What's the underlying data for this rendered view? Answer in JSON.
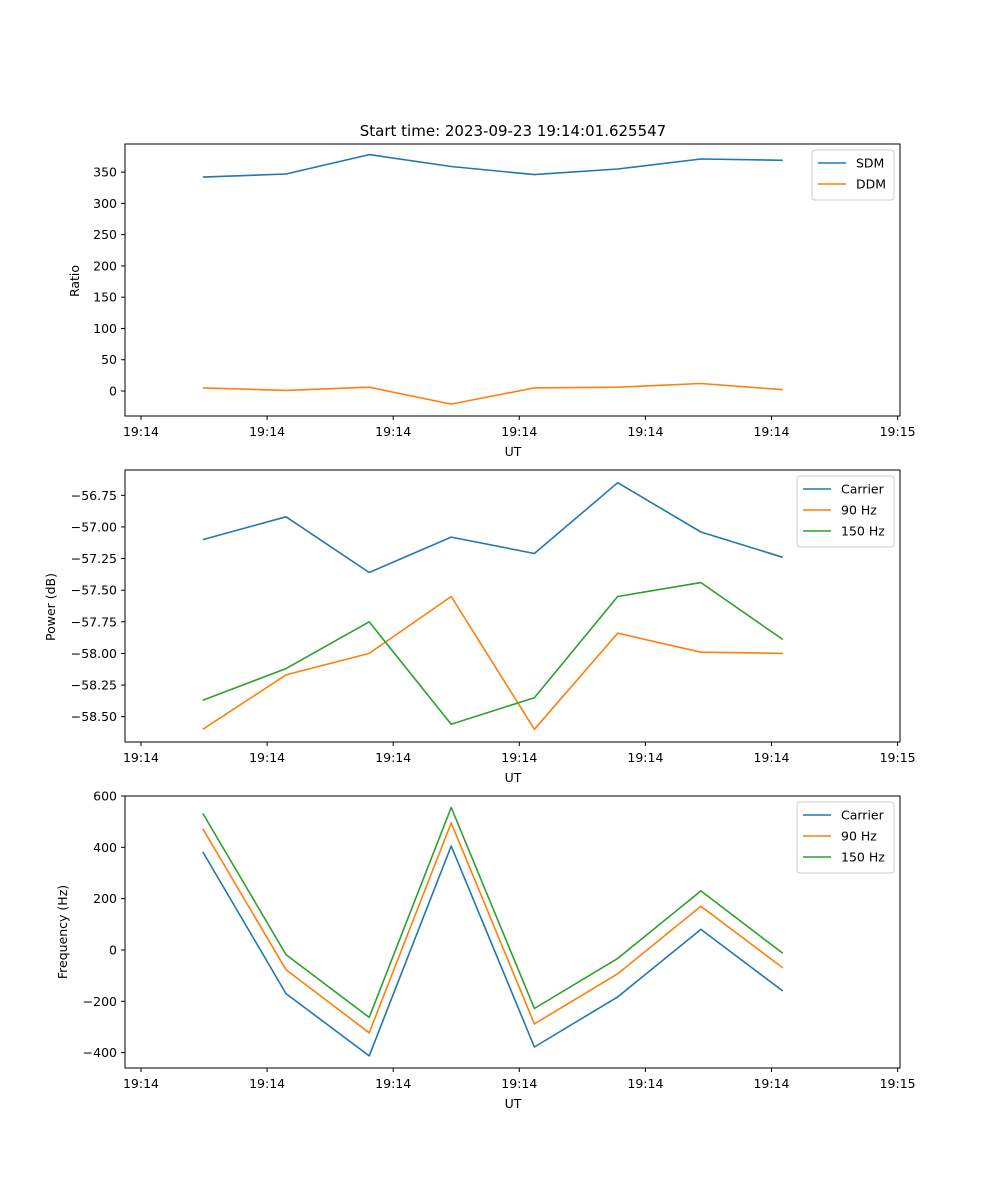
{
  "chart_data": [
    {
      "type": "line",
      "title": "Start time: 2023-09-23 19:14:01.625547",
      "xlabel": "UT",
      "ylabel": "Ratio",
      "x_tick_labels": [
        "19:14",
        "19:14",
        "19:14",
        "19:14",
        "19:14",
        "19:14",
        "19:15"
      ],
      "x_tick_index": [
        0,
        1,
        2,
        3,
        4,
        5,
        6
      ],
      "xlim": [
        -0.14,
        6.0
      ],
      "ylim": [
        -40,
        395
      ],
      "yticks": [
        0,
        50,
        100,
        150,
        200,
        250,
        300,
        350
      ],
      "x": [
        0.49,
        1.15,
        1.81,
        2.46,
        3.12,
        3.78,
        4.44,
        5.09
      ],
      "legend": "top-right",
      "series": [
        {
          "name": "SDM",
          "color": "#1f77b4",
          "values": [
            342,
            347,
            378,
            359,
            346,
            355,
            371,
            369
          ]
        },
        {
          "name": "DDM",
          "color": "#ff7f0e",
          "values": [
            5,
            1,
            6,
            -21,
            5,
            6,
            12,
            2
          ]
        }
      ]
    },
    {
      "type": "line",
      "title": "",
      "xlabel": "UT",
      "ylabel": "Power (dB)",
      "x_tick_labels": [
        "19:14",
        "19:14",
        "19:14",
        "19:14",
        "19:14",
        "19:14",
        "19:15"
      ],
      "x_tick_index": [
        0,
        1,
        2,
        3,
        4,
        5,
        6
      ],
      "xlim": [
        -0.14,
        6.0
      ],
      "ylim": [
        -58.7,
        -56.55
      ],
      "yticks": [
        -58.5,
        -58.25,
        -58.0,
        -57.75,
        -57.5,
        -57.25,
        -57.0,
        -56.75
      ],
      "ytick_labels": [
        "−58.50",
        "−58.25",
        "−58.00",
        "−57.75",
        "−57.50",
        "−57.25",
        "−57.00",
        "−56.75"
      ],
      "x": [
        0.49,
        1.15,
        1.81,
        2.46,
        3.12,
        3.78,
        4.44,
        5.09
      ],
      "legend": "top-right",
      "series": [
        {
          "name": "Carrier",
          "color": "#1f77b4",
          "values": [
            -57.1,
            -56.92,
            -57.36,
            -57.08,
            -57.21,
            -56.65,
            -57.04,
            -57.24
          ]
        },
        {
          "name": "90 Hz",
          "color": "#ff7f0e",
          "values": [
            -58.6,
            -58.17,
            -58.0,
            -57.55,
            -58.6,
            -57.84,
            -57.99,
            -58.0
          ]
        },
        {
          "name": "150 Hz",
          "color": "#2ca02c",
          "values": [
            -58.37,
            -58.12,
            -57.75,
            -58.56,
            -58.35,
            -57.55,
            -57.44,
            -57.89
          ]
        }
      ]
    },
    {
      "type": "line",
      "title": "",
      "xlabel": "UT",
      "ylabel": "Frequency (Hz)",
      "x_tick_labels": [
        "19:14",
        "19:14",
        "19:14",
        "19:14",
        "19:14",
        "19:14",
        "19:15"
      ],
      "x_tick_index": [
        0,
        1,
        2,
        3,
        4,
        5,
        6
      ],
      "xlim": [
        -0.14,
        6.0
      ],
      "ylim": [
        -460,
        600
      ],
      "yticks": [
        -400,
        -200,
        0,
        200,
        400,
        600
      ],
      "ytick_labels": [
        "−400",
        "−200",
        "0",
        "200",
        "400",
        "600"
      ],
      "x": [
        0.49,
        1.15,
        1.81,
        2.46,
        3.12,
        3.78,
        4.44,
        5.09
      ],
      "legend": "top-right",
      "series": [
        {
          "name": "Carrier",
          "color": "#1f77b4",
          "values": [
            382,
            -170,
            -413,
            405,
            -378,
            -183,
            80,
            -160
          ]
        },
        {
          "name": "90 Hz",
          "color": "#ff7f0e",
          "values": [
            472,
            -77,
            -323,
            495,
            -288,
            -93,
            170,
            -70
          ]
        },
        {
          "name": "150 Hz",
          "color": "#2ca02c",
          "values": [
            532,
            -18,
            -263,
            555,
            -228,
            -33,
            230,
            -13
          ]
        }
      ]
    }
  ]
}
